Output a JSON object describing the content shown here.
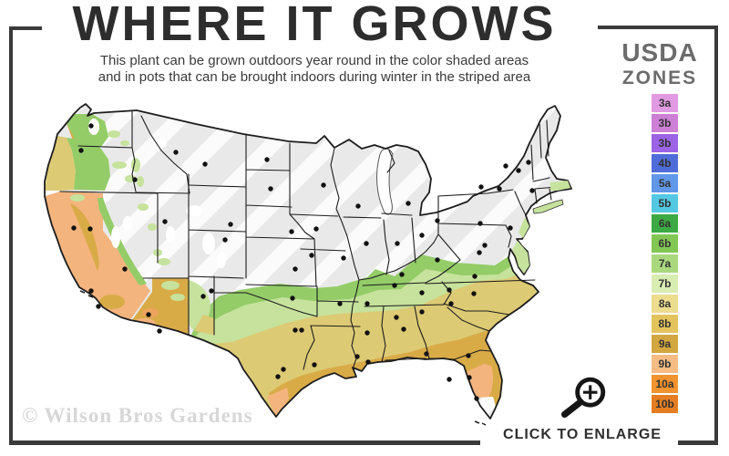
{
  "header": {
    "title": "WHERE IT GROWS",
    "subtitle_line1": "This plant can be grown outdoors year round in the color shaded areas",
    "subtitle_line2": "and in pots that can be brought indoors during winter in the striped area"
  },
  "legend": {
    "title_line1": "USDA",
    "title_line2": "ZONES",
    "zones": [
      {
        "label": "3a",
        "color": "#e19ae1"
      },
      {
        "label": "3b",
        "color": "#cd7fd6"
      },
      {
        "label": "3b",
        "color": "#9c63e6"
      },
      {
        "label": "4b",
        "color": "#4f6cd9"
      },
      {
        "label": "5a",
        "color": "#6097e8"
      },
      {
        "label": "5b",
        "color": "#54c8e2"
      },
      {
        "label": "6a",
        "color": "#3caa43"
      },
      {
        "label": "6b",
        "color": "#82c754"
      },
      {
        "label": "7a",
        "color": "#a9d87d"
      },
      {
        "label": "7b",
        "color": "#d9ecb2"
      },
      {
        "label": "8a",
        "color": "#ebdc8e"
      },
      {
        "label": "8b",
        "color": "#e3c45c"
      },
      {
        "label": "9a",
        "color": "#d3a73f"
      },
      {
        "label": "9b",
        "color": "#f6bc84"
      },
      {
        "label": "10a",
        "color": "#f1932f"
      },
      {
        "label": "10b",
        "color": "#e57e22"
      }
    ]
  },
  "map": {
    "palette": {
      "striped_base": "#e9e9e9",
      "stripe": "#fbfbfb",
      "green": "#94cc68",
      "light_green": "#c6e29c",
      "khaki": "#ddca74",
      "gold": "#d9ab47",
      "peach": "#f4b47e",
      "orange": "#eda45e",
      "mountain_white": "#ffffff",
      "water_white": "#ffffff",
      "border": "#1d1d1d",
      "dot": "#111111"
    },
    "city_dots": [
      [
        85,
        33
      ],
      [
        74,
        60
      ],
      [
        133,
        92
      ],
      [
        178,
        62
      ],
      [
        210,
        75
      ],
      [
        278,
        70
      ],
      [
        282,
        102
      ],
      [
        238,
        141
      ],
      [
        232,
        158
      ],
      [
        166,
        138
      ],
      [
        84,
        146
      ],
      [
        122,
        190
      ],
      [
        66,
        145
      ],
      [
        85,
        214
      ],
      [
        93,
        231
      ],
      [
        148,
        240
      ],
      [
        160,
        258
      ],
      [
        208,
        220
      ],
      [
        217,
        214
      ],
      [
        305,
        149
      ],
      [
        327,
        175
      ],
      [
        309,
        190
      ],
      [
        332,
        146
      ],
      [
        340,
        98
      ],
      [
        378,
        121
      ],
      [
        433,
        118
      ],
      [
        387,
        162
      ],
      [
        421,
        162
      ],
      [
        362,
        178
      ],
      [
        448,
        153
      ],
      [
        465,
        137
      ],
      [
        512,
        140
      ],
      [
        513,
        100
      ],
      [
        533,
        102
      ],
      [
        540,
        77
      ],
      [
        554,
        82
      ],
      [
        565,
        73
      ],
      [
        569,
        104
      ],
      [
        545,
        145
      ],
      [
        517,
        164
      ],
      [
        511,
        172
      ],
      [
        465,
        180
      ],
      [
        506,
        198
      ],
      [
        426,
        196
      ],
      [
        505,
        217
      ],
      [
        478,
        213
      ],
      [
        480,
        228
      ],
      [
        418,
        208
      ],
      [
        448,
        216
      ],
      [
        388,
        228
      ],
      [
        358,
        228
      ],
      [
        448,
        237
      ],
      [
        420,
        243
      ],
      [
        428,
        256
      ],
      [
        388,
        260
      ],
      [
        306,
        222
      ],
      [
        309,
        257
      ],
      [
        316,
        257
      ],
      [
        296,
        300
      ],
      [
        330,
        295
      ],
      [
        290,
        308
      ],
      [
        377,
        286
      ],
      [
        389,
        292
      ],
      [
        453,
        283
      ],
      [
        499,
        285
      ],
      [
        478,
        311
      ],
      [
        500,
        309
      ],
      [
        508,
        332
      ]
    ]
  },
  "footer": {
    "watermark": "© Wilson Bros Gardens",
    "enlarge_label": "CLICK TO ENLARGE"
  },
  "icons": {
    "enlarge": "magnifier-plus-icon"
  }
}
